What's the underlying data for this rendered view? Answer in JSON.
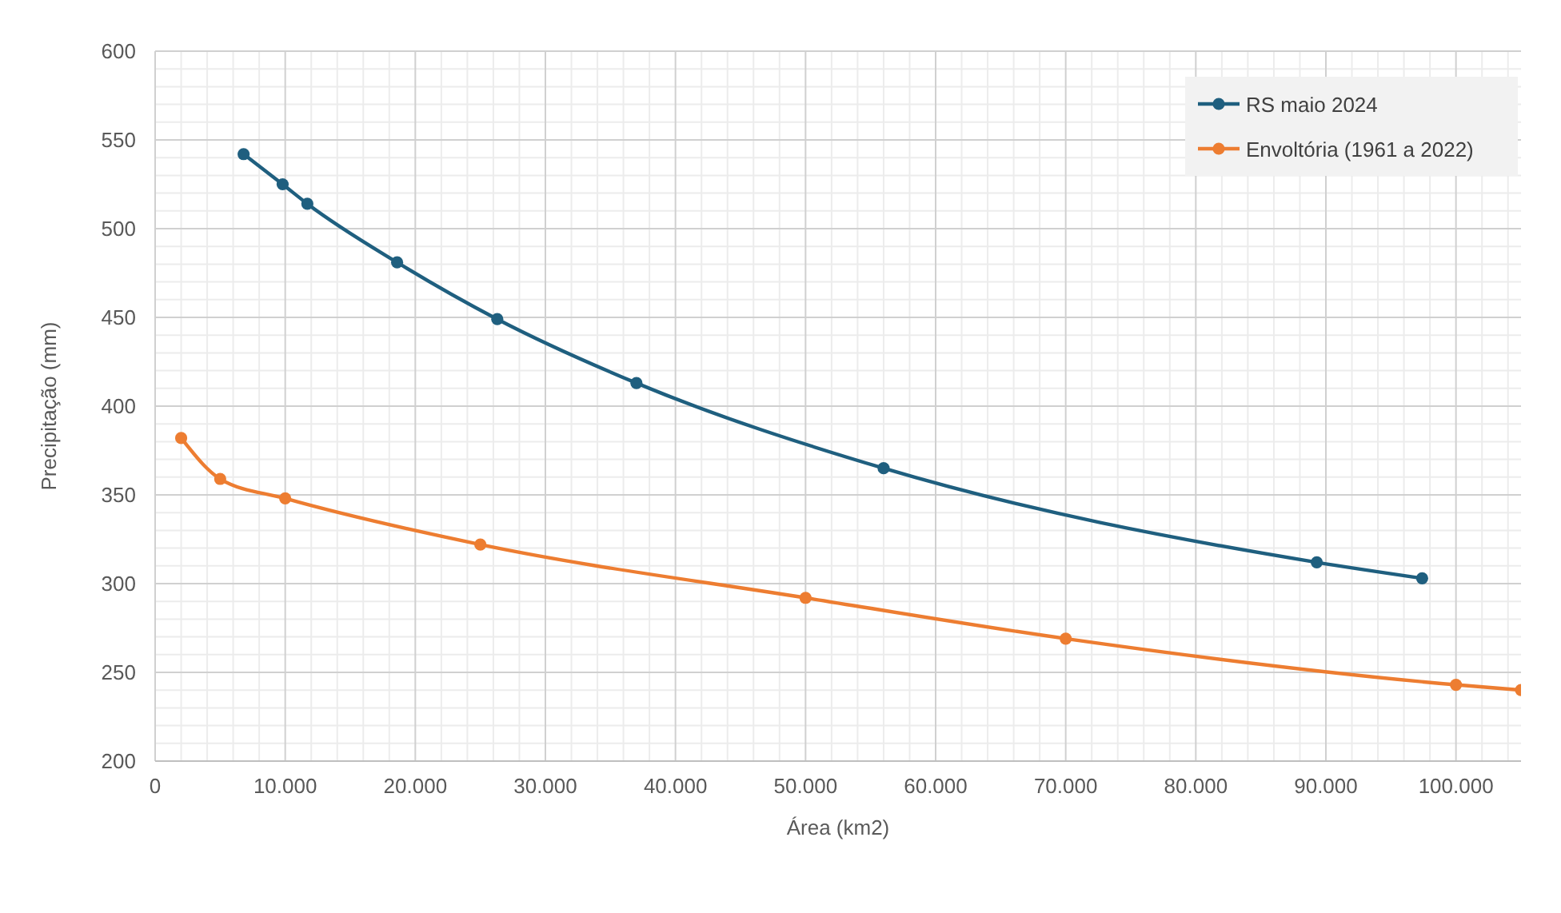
{
  "chart_data": {
    "type": "line",
    "xlabel": "Área (km2)",
    "ylabel": "Precipitação (mm)",
    "xlim": [
      0,
      105000
    ],
    "xticks": [
      0,
      {
        "value": 10000,
        "label": "10.000"
      },
      {
        "value": 20000,
        "label": "20.000"
      },
      {
        "value": 30000,
        "label": "30.000"
      },
      {
        "value": 40000,
        "label": "40.000"
      },
      {
        "value": 50000,
        "label": "50.000"
      },
      {
        "value": 60000,
        "label": "60.000"
      },
      {
        "value": 70000,
        "label": "70.000"
      },
      {
        "value": 80000,
        "label": "80.000"
      },
      {
        "value": 90000,
        "label": "90.000"
      },
      {
        "value": 100000,
        "label": "100.000"
      }
    ],
    "ylim": [
      200,
      600
    ],
    "yticks": [
      200,
      250,
      300,
      350,
      400,
      450,
      500,
      550,
      600
    ],
    "grid": true,
    "legend": "top right",
    "marker": "circle",
    "line_style": "solid",
    "series": [
      {
        "name": "RS maio 2024",
        "color": "#1f5f7f",
        "x": [
          6800,
          9800,
          11700,
          18600,
          26300,
          37000,
          56000,
          89300,
          97400
        ],
        "values": [
          542,
          525,
          514,
          481,
          449,
          413,
          365,
          312,
          303
        ]
      },
      {
        "name": "Envoltória (1961 a 2022)",
        "color": "#ed7d31",
        "x": [
          2000,
          5000,
          10000,
          25000,
          50000,
          70000,
          100000,
          105000
        ],
        "values": [
          382,
          359,
          348,
          322,
          292,
          269,
          243,
          240
        ]
      }
    ]
  }
}
